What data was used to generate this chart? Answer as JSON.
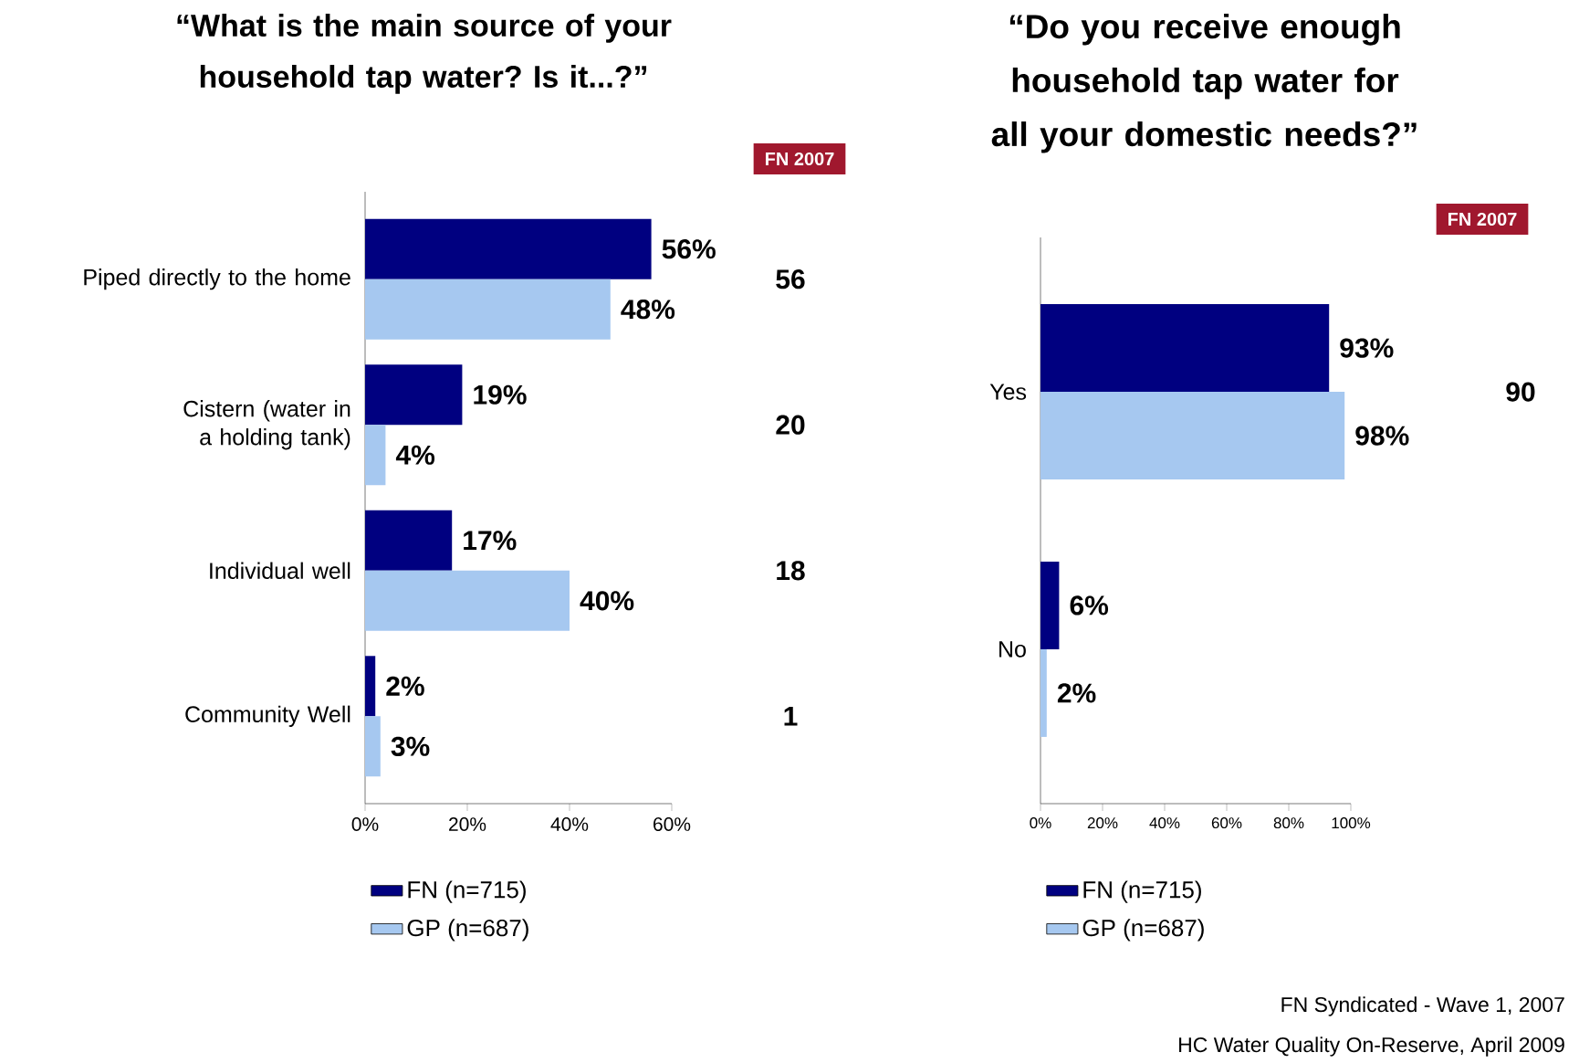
{
  "chart_data": [
    {
      "type": "bar",
      "orientation": "horizontal",
      "title": "“What is the main source of your household tap water? Is it...?”",
      "categories": [
        "Piped directly to the home",
        "Cistern (water in a holding tank)",
        "Individual well",
        "Community Well"
      ],
      "series": [
        {
          "name": "FN (n=715)",
          "color": "#000080",
          "values": [
            56,
            19,
            17,
            2
          ],
          "value_labels": [
            "56%",
            "19%",
            "17%",
            "2%"
          ]
        },
        {
          "name": "GP (n=687)",
          "color": "#a6c8f0",
          "values": [
            48,
            4,
            40,
            3
          ],
          "value_labels": [
            "48%",
            "4%",
            "40%",
            "3%"
          ]
        }
      ],
      "xlim": [
        0,
        60
      ],
      "xticks": [
        {
          "value": 0,
          "label": "0%"
        },
        {
          "value": 20,
          "label": "20%"
        },
        {
          "value": 40,
          "label": "40%"
        },
        {
          "value": 60,
          "label": "60%"
        }
      ],
      "legend": "bottom",
      "grid": false,
      "annotations": [
        "FN 2007",
        "56",
        "20",
        "18",
        "1"
      ]
    },
    {
      "type": "bar",
      "orientation": "horizontal",
      "title": "“Do you receive enough household tap water for all your domestic needs?”",
      "categories": [
        "Yes",
        "No"
      ],
      "series": [
        {
          "name": "FN (n=715)",
          "color": "#000080",
          "values": [
            93,
            6
          ],
          "value_labels": [
            "93%",
            "6%"
          ]
        },
        {
          "name": "GP (n=687)",
          "color": "#a6c8f0",
          "values": [
            98,
            2
          ],
          "value_labels": [
            "98%",
            "2%"
          ]
        }
      ],
      "xlim": [
        0,
        100
      ],
      "xticks": [
        {
          "value": 0,
          "label": "0%"
        },
        {
          "value": 20,
          "label": "20%"
        },
        {
          "value": 40,
          "label": "40%"
        },
        {
          "value": 60,
          "label": "60%"
        },
        {
          "value": 80,
          "label": "80%"
        },
        {
          "value": 100,
          "label": "100%"
        }
      ],
      "legend": "bottom",
      "grid": false,
      "annotations": [
        "FN 2007",
        "90",
        "FN Syndicated - Wave 1, 2007",
        "HC Water Quality On-Reserve, April 2009"
      ]
    }
  ]
}
